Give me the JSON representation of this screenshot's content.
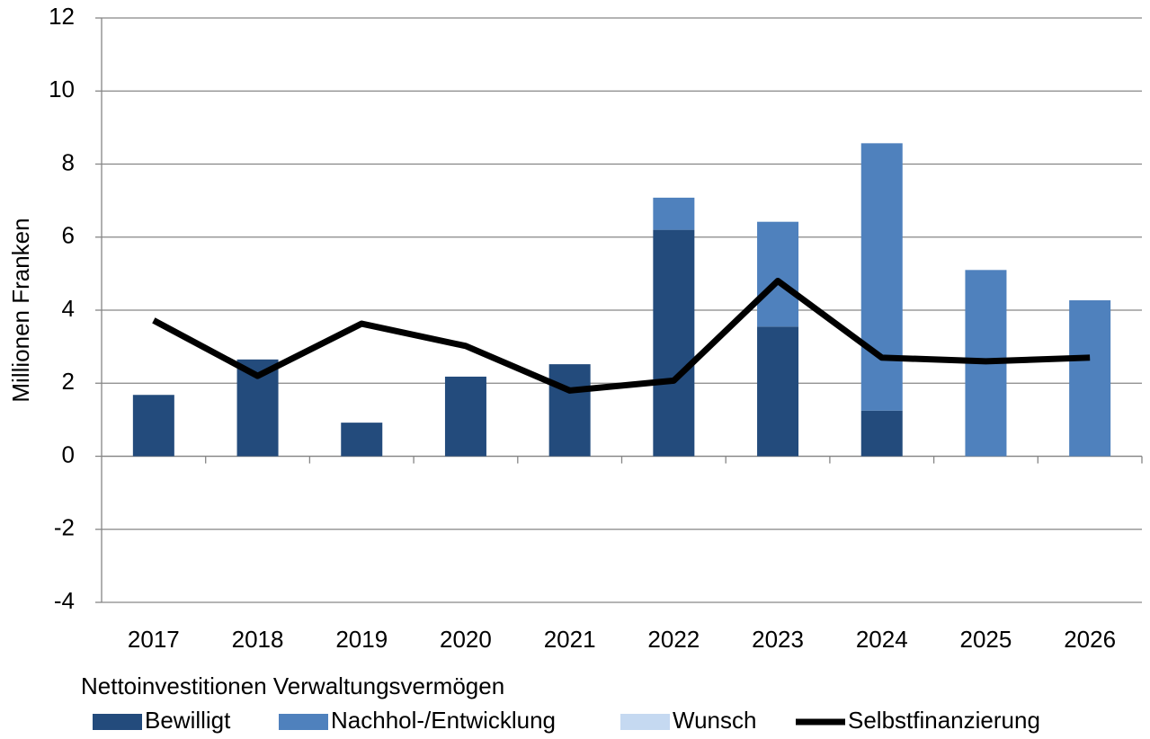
{
  "chart_data": {
    "type": "bar",
    "stacked": true,
    "y_label": "Millionen Franken",
    "legend_title": "Nettoinvestitionen Verwaltungsvermögen",
    "legend": "bottom",
    "categories": [
      "2017",
      "2018",
      "2019",
      "2020",
      "2021",
      "2022",
      "2023",
      "2024",
      "2025",
      "2026"
    ],
    "series": [
      {
        "name": "Bewilligt",
        "type": "bar",
        "color": "#234b7c",
        "values": [
          1.68,
          2.65,
          0.92,
          2.18,
          2.52,
          6.2,
          3.55,
          1.25,
          0,
          0
        ]
      },
      {
        "name": "Nachhol-/Entwicklung",
        "type": "bar",
        "color": "#4f81bd",
        "values": [
          0,
          0,
          0,
          0,
          0,
          0.88,
          2.87,
          7.32,
          5.1,
          4.27
        ]
      },
      {
        "name": "Wunsch",
        "type": "bar",
        "color": "#c5d9f1",
        "values": [
          0,
          0,
          0,
          0,
          0,
          0,
          0,
          0,
          0,
          0
        ]
      },
      {
        "name": "Selbstfinanzierung",
        "type": "line",
        "color": "#000000",
        "values": [
          3.72,
          2.2,
          3.63,
          3.02,
          1.8,
          2.07,
          4.8,
          2.7,
          2.6,
          2.7
        ]
      }
    ],
    "ylim": [
      -4,
      12
    ],
    "yticks": [
      -4,
      -2,
      0,
      2,
      4,
      6,
      8,
      10,
      12
    ],
    "grid": true
  }
}
